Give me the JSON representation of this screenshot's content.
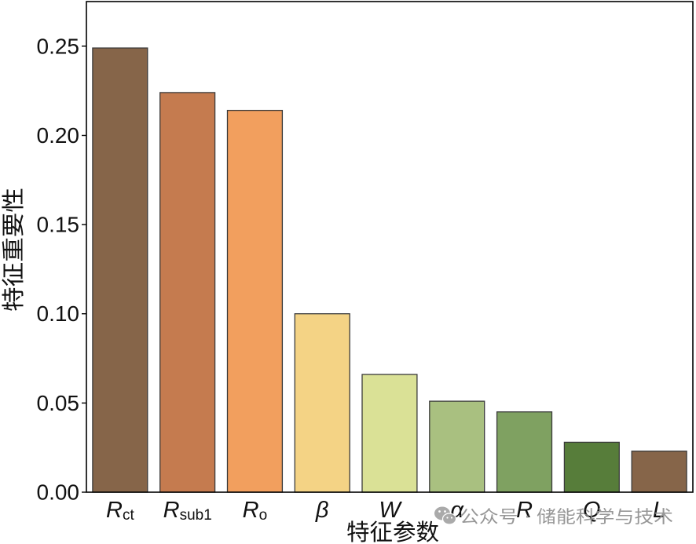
{
  "chart_data": {
    "type": "bar",
    "categories": [
      {
        "base": "R",
        "sub": "ct"
      },
      {
        "base": "R",
        "sub": "sub1"
      },
      {
        "base": "R",
        "sub": "o"
      },
      {
        "base": "β",
        "sub": ""
      },
      {
        "base": "W",
        "sub": ""
      },
      {
        "base": "α",
        "sub": ""
      },
      {
        "base": "R",
        "sub": ""
      },
      {
        "base": "Q",
        "sub": ""
      },
      {
        "base": "L",
        "sub": ""
      }
    ],
    "values": [
      0.249,
      0.224,
      0.214,
      0.1,
      0.066,
      0.051,
      0.045,
      0.028,
      0.023
    ],
    "colors": [
      "#866549",
      "#C57B4F",
      "#F29F5E",
      "#F4D385",
      "#DAE196",
      "#A9C080",
      "#7FA161",
      "#577D3A",
      "#866549"
    ],
    "edge_color": "#3a3a3a",
    "xlabel": "特征参数",
    "ylabel": "特征重要性",
    "ylim": [
      0,
      0.275
    ],
    "yticks": [
      0,
      0.05,
      0.1,
      0.15,
      0.2,
      0.25
    ],
    "ytick_labels": [
      "0.00",
      "0.05",
      "0.10",
      "0.15",
      "0.20",
      "0.25"
    ],
    "grid": false
  },
  "watermark": {
    "icon": "wechat-icon",
    "text": "公众号 · 储能科学与技术"
  }
}
